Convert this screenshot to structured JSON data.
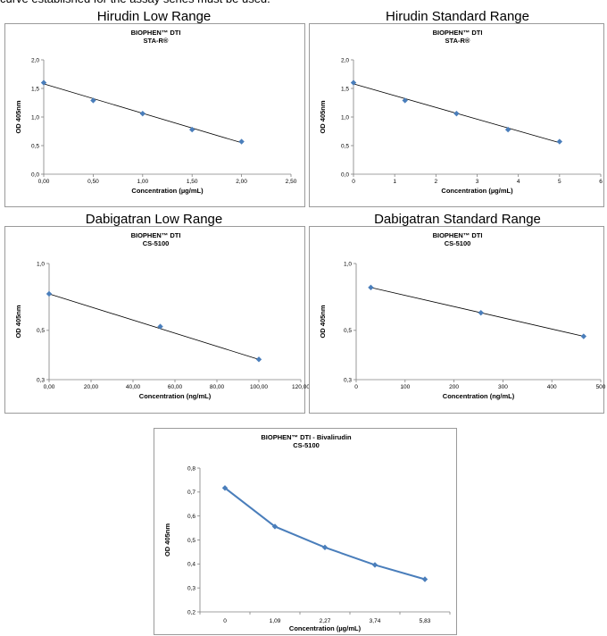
{
  "page_note": "curve established for the assay series must be used.",
  "colors": {
    "marker": "#4a7ebb",
    "fit_line": "#000000",
    "bival_line": "#4a7ebb",
    "axis": "#808080",
    "border": "#9a9a9a"
  },
  "chart_data": [
    {
      "heading": "Hirudin Low Range",
      "type": "scatter",
      "title": "BIOPHEN™ DTI",
      "subtitle": "STA-R®",
      "xlabel": "Concentration (µg/mL)",
      "ylabel": "OD 405nm",
      "xlim": [
        0,
        2.5
      ],
      "ylim": [
        0,
        2
      ],
      "xticks": [
        "0,00",
        "0,50",
        "1,00",
        "1,50",
        "2,00",
        "2,50"
      ],
      "yticks": [
        "0,0",
        "0,5",
        "1,0",
        "1,5",
        "2,0"
      ],
      "x": [
        0,
        0.5,
        1.0,
        1.5,
        2.0
      ],
      "y": [
        1.6,
        1.29,
        1.06,
        0.78,
        0.57
      ],
      "trendline": {
        "x": [
          0,
          2.0
        ],
        "y": [
          1.58,
          0.55
        ]
      },
      "grid": false
    },
    {
      "heading": "Hirudin Standard Range",
      "type": "scatter",
      "title": "BIOPHEN™ DTI",
      "subtitle": "STA-R®",
      "xlabel": "Concentration (µg/mL)",
      "ylabel": "OD 405nm",
      "xlim": [
        0,
        6
      ],
      "ylim": [
        0,
        2
      ],
      "xticks": [
        "0",
        "1",
        "2",
        "3",
        "4",
        "5",
        "6"
      ],
      "yticks": [
        "0,0",
        "0,5",
        "1,0",
        "1,5",
        "2,0"
      ],
      "x": [
        0,
        1.25,
        2.5,
        3.75,
        5.0
      ],
      "y": [
        1.6,
        1.29,
        1.06,
        0.78,
        0.57
      ],
      "trendline": {
        "x": [
          0,
          5.0
        ],
        "y": [
          1.58,
          0.55
        ]
      },
      "grid": false
    },
    {
      "heading": "Dabigatran Low Range",
      "type": "scatter",
      "title": "BIOPHEN™ DTI",
      "subtitle": "CS-5100",
      "xlabel": "Concentration (ng/mL)",
      "ylabel": "OD 405nm",
      "xlim": [
        0,
        120
      ],
      "ylim": [
        0.3,
        1.0
      ],
      "yscale": "log",
      "xticks": [
        "0,00",
        "20,00",
        "40,00",
        "60,00",
        "80,00",
        "100,00",
        "120,00"
      ],
      "yticks": [
        "0,3",
        "0,5",
        "1,0"
      ],
      "x": [
        0,
        53,
        100
      ],
      "y": [
        0.73,
        0.52,
        0.37
      ],
      "trendline": {
        "x": [
          0,
          100
        ],
        "y": [
          0.73,
          0.37
        ]
      },
      "grid": false
    },
    {
      "heading": "Dabigatran Standard Range",
      "type": "scatter",
      "title": "BIOPHEN™ DTI",
      "subtitle": "CS-5100",
      "xlabel": "Concentration (ng/mL)",
      "ylabel": "OD 405nm",
      "xlim": [
        0,
        500
      ],
      "ylim": [
        0.3,
        1.0
      ],
      "yscale": "log",
      "xticks": [
        "0",
        "100",
        "200",
        "300",
        "400",
        "500"
      ],
      "yticks": [
        "0,3",
        "0,5",
        "1,0"
      ],
      "x": [
        30,
        255,
        465
      ],
      "y": [
        0.78,
        0.6,
        0.47
      ],
      "trendline": {
        "x": [
          30,
          465
        ],
        "y": [
          0.78,
          0.47
        ]
      },
      "grid": false
    },
    {
      "heading": "",
      "type": "line",
      "title": "BIOPHEN™ DTI - Bivalirudin",
      "subtitle": "CS-5100",
      "xlabel": "Concentration (µg/mL)",
      "ylabel": "OD 405nm",
      "categories": [
        "0",
        "1,09",
        "2,27",
        "3,74",
        "5,83"
      ],
      "ylim": [
        0.2,
        0.8
      ],
      "yticks": [
        "0,2",
        "0,3",
        "0,4",
        "0,5",
        "0,6",
        "0,7",
        "0,8"
      ],
      "y": [
        0.717,
        0.556,
        0.469,
        0.396,
        0.336
      ],
      "grid": false
    }
  ]
}
